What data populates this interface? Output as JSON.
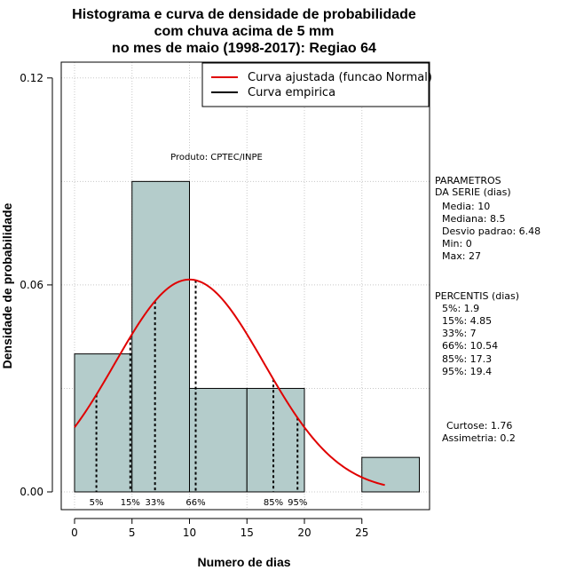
{
  "chart_data": {
    "type": "bar",
    "title": [
      "Histograma e curva de densidade de probabilidade",
      "com chuva acima de 5 mm",
      "no mes de maio (1998-2017): Regiao 64"
    ],
    "xlabel": "Numero de dias",
    "ylabel": "Densidade de probabilidade",
    "xlim": [
      -1,
      30
    ],
    "ylim": [
      -0.005,
      0.125
    ],
    "x_ticks": [
      0,
      5,
      10,
      15,
      20,
      25
    ],
    "y_ticks": [
      0.0,
      0.06,
      0.12
    ],
    "y_tick_labels": [
      "0.00",
      "0.06",
      "0.12"
    ],
    "grid": true,
    "bins": [
      {
        "x0": 0,
        "x1": 5,
        "density": 0.04
      },
      {
        "x0": 5,
        "x1": 10,
        "density": 0.09
      },
      {
        "x0": 10,
        "x1": 15,
        "density": 0.03
      },
      {
        "x0": 15,
        "x1": 20,
        "density": 0.03
      },
      {
        "x0": 20,
        "x1": 25,
        "density": 0.0
      },
      {
        "x0": 25,
        "x1": 30,
        "density": 0.01
      }
    ],
    "bar_color": "#b4cccb",
    "normal_curve": {
      "name": "Curva ajustada (funcao Normal)",
      "mean": 10,
      "sd": 6.48,
      "x_from": 0,
      "x_to": 27,
      "color": "#e00000"
    },
    "empirical_curve": {
      "name": "Curva empirica",
      "color": "#000000"
    },
    "percentile_lines": [
      {
        "label": "5%",
        "x": 1.9
      },
      {
        "label": "15%",
        "x": 4.85
      },
      {
        "label": "33%",
        "x": 7
      },
      {
        "label": "66%",
        "x": 10.54
      },
      {
        "label": "85%",
        "x": 17.3
      },
      {
        "label": "95%",
        "x": 19.4
      }
    ],
    "legend_position": "top-right",
    "annotation": "Produto: CPTEC/INPE"
  },
  "side_panel": {
    "params_title_1": "PARAMETROS",
    "params_title_2": "DA SERIE (dias)",
    "media": "Media: 10",
    "mediana": "Mediana: 8.5",
    "desvio": "Desvio padrao: 6.48",
    "min": "Min: 0",
    "max": "Max: 27",
    "percentis_title": "PERCENTIS (dias)",
    "p5": "5%: 1.9",
    "p15": "15%: 4.85",
    "p33": "33%: 7",
    "p66": "66%: 10.54",
    "p85": "85%: 17.3",
    "p95": "95%: 19.4",
    "curtose": "Curtose: 1.76",
    "assimetria": "Assimetria: 0.2"
  }
}
